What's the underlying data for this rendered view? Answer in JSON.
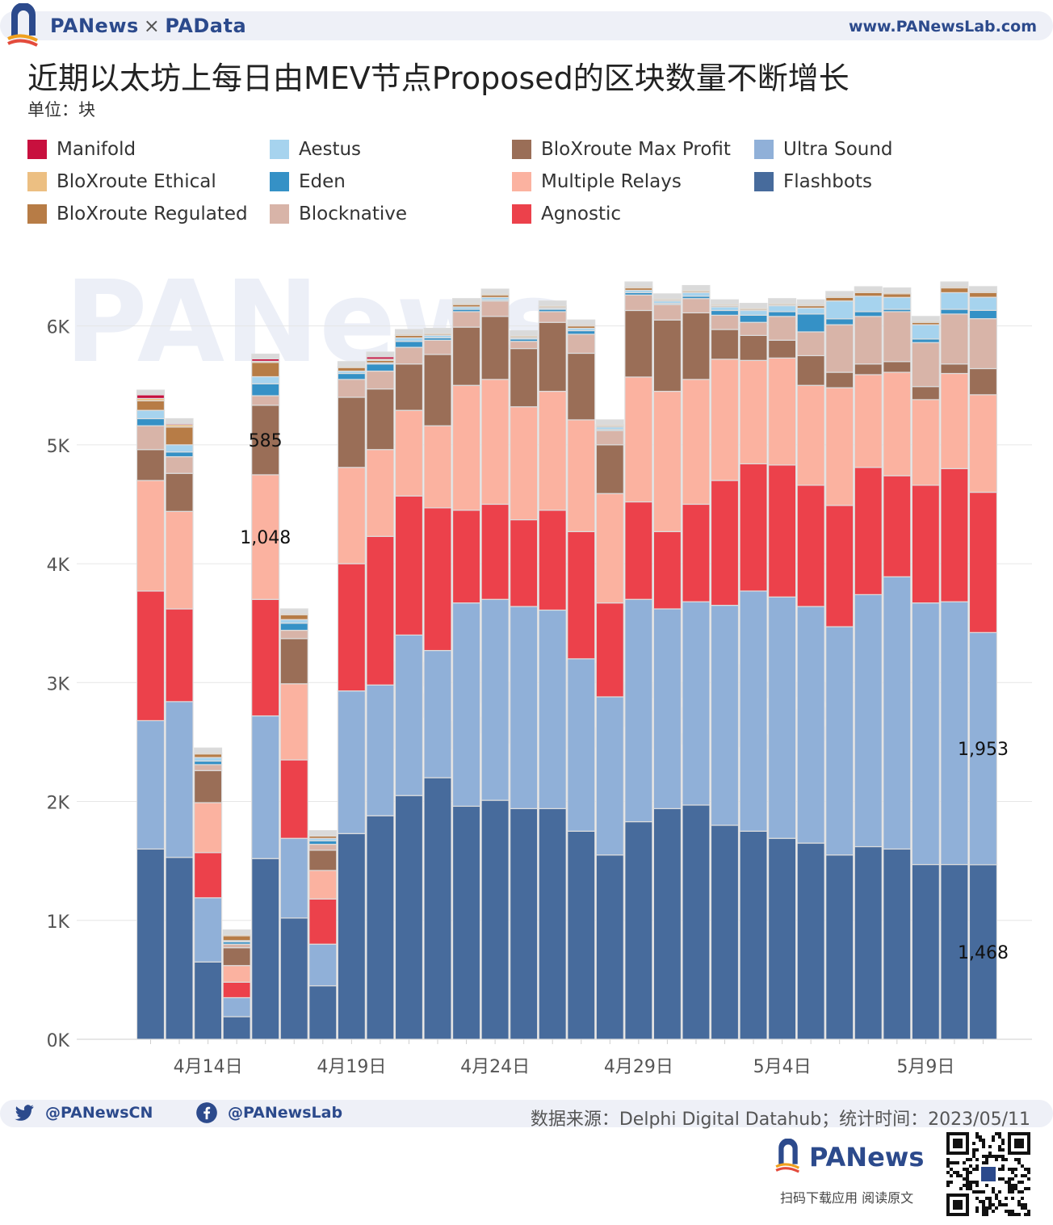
{
  "header": {
    "brand_left": "PANews",
    "brand_sep": "×",
    "brand_right": "PAData",
    "site": "www.PANewsLab.com"
  },
  "title": "近期以太坊上每日由MEV节点Proposed的区块数量不断增长",
  "unit": "单位：块",
  "watermarks": [
    "PANews",
    "PAData"
  ],
  "chart_data": {
    "type": "bar",
    "stacked": true,
    "ylim": [
      0,
      6500
    ],
    "yticks": [
      {
        "value": 0,
        "label": "0K"
      },
      {
        "value": 1000,
        "label": "1K"
      },
      {
        "value": 2000,
        "label": "2K"
      },
      {
        "value": 3000,
        "label": "3K"
      },
      {
        "value": 4000,
        "label": "4K"
      },
      {
        "value": 5000,
        "label": "5K"
      },
      {
        "value": 6000,
        "label": "6K"
      }
    ],
    "xticks": [
      {
        "day": 14,
        "label": "4月14日"
      },
      {
        "day": 19,
        "label": "4月19日"
      },
      {
        "day": 24,
        "label": "4月24日"
      },
      {
        "day": 29,
        "label": "4月29日"
      },
      {
        "day": 34,
        "label": "5月4日"
      },
      {
        "day": 39,
        "label": "5月9日"
      }
    ],
    "days": [
      12,
      13,
      14,
      15,
      16,
      17,
      18,
      19,
      20,
      21,
      22,
      23,
      24,
      25,
      26,
      27,
      28,
      29,
      30,
      31,
      32,
      33,
      34,
      35,
      36,
      37,
      38,
      39,
      40,
      41
    ],
    "legend": [
      {
        "name": "Manifold",
        "color": "#c8103e"
      },
      {
        "name": "Aestus",
        "color": "#a6d3ee"
      },
      {
        "name": "BloXroute Max Profit",
        "color": "#9a6e57"
      },
      {
        "name": "Ultra Sound",
        "color": "#90b0d8"
      },
      {
        "name": "BloXroute Ethical",
        "color": "#ecbf82"
      },
      {
        "name": "Eden",
        "color": "#3591c6"
      },
      {
        "name": "Multiple Relays",
        "color": "#fbb2a0"
      },
      {
        "name": "Flashbots",
        "color": "#476b9c"
      },
      {
        "name": "BloXroute Regulated",
        "color": "#b77c46"
      },
      {
        "name": "Blocknative",
        "color": "#d8b4a8"
      },
      {
        "name": "Agnostic",
        "color": "#ec414b"
      }
    ],
    "series": [
      {
        "name": "Flashbots",
        "color": "#476b9c",
        "values": [
          1600,
          1530,
          650,
          190,
          1520,
          1020,
          450,
          1730,
          1880,
          2050,
          2200,
          1960,
          2010,
          1940,
          1940,
          1750,
          1550,
          1830,
          1940,
          1970,
          1800,
          1750,
          1690,
          1650,
          1550,
          1620,
          1600,
          1470,
          1470,
          1468
        ]
      },
      {
        "name": "Ultra Sound",
        "color": "#90b0d8",
        "values": [
          1080,
          1310,
          540,
          160,
          1200,
          670,
          350,
          1200,
          1100,
          1350,
          1070,
          1710,
          1690,
          1700,
          1670,
          1450,
          1330,
          1870,
          1680,
          1710,
          1850,
          2020,
          2030,
          1990,
          1920,
          2120,
          2290,
          2200,
          2210,
          1953
        ]
      },
      {
        "name": "Agnostic",
        "color": "#ec414b",
        "values": [
          1090,
          780,
          380,
          130,
          980,
          660,
          380,
          1070,
          1250,
          1170,
          1200,
          780,
          800,
          730,
          840,
          1070,
          790,
          820,
          650,
          820,
          1050,
          1070,
          1110,
          1020,
          1020,
          1070,
          850,
          990,
          1120,
          1180
        ]
      },
      {
        "name": "Multiple Relays",
        "color": "#fbb2a0",
        "values": [
          930,
          820,
          420,
          140,
          1048,
          640,
          240,
          810,
          730,
          720,
          690,
          1050,
          1050,
          950,
          1000,
          940,
          920,
          1050,
          1180,
          1050,
          1020,
          870,
          900,
          840,
          990,
          780,
          870,
          720,
          800,
          820
        ]
      },
      {
        "name": "BloXroute Max Profit",
        "color": "#9a6e57",
        "values": [
          260,
          320,
          270,
          150,
          585,
          380,
          170,
          590,
          510,
          390,
          600,
          490,
          530,
          490,
          580,
          560,
          410,
          560,
          600,
          560,
          250,
          210,
          150,
          250,
          130,
          90,
          90,
          110,
          80,
          220
        ]
      },
      {
        "name": "Blocknative",
        "color": "#d8b4a8",
        "values": [
          200,
          140,
          50,
          30,
          80,
          70,
          50,
          150,
          150,
          140,
          120,
          130,
          130,
          60,
          90,
          160,
          120,
          130,
          130,
          120,
          120,
          110,
          200,
          200,
          400,
          400,
          420,
          370,
          420,
          420
        ]
      },
      {
        "name": "Eden",
        "color": "#3591c6",
        "values": [
          60,
          40,
          30,
          20,
          100,
          60,
          30,
          50,
          60,
          50,
          20,
          20,
          10,
          20,
          20,
          30,
          10,
          20,
          10,
          20,
          40,
          60,
          40,
          150,
          50,
          40,
          20,
          30,
          40,
          70
        ]
      },
      {
        "name": "Aestus",
        "color": "#a6d3ee",
        "values": [
          70,
          60,
          30,
          10,
          60,
          30,
          20,
          20,
          10,
          30,
          20,
          20,
          20,
          10,
          10,
          20,
          20,
          20,
          20,
          30,
          30,
          40,
          50,
          50,
          150,
          130,
          100,
          120,
          140,
          110
        ]
      },
      {
        "name": "BloXroute Regulated",
        "color": "#b77c46",
        "values": [
          80,
          150,
          30,
          40,
          120,
          40,
          20,
          30,
          20,
          20,
          10,
          20,
          20,
          10,
          10,
          20,
          10,
          20,
          10,
          10,
          10,
          10,
          10,
          20,
          30,
          30,
          30,
          20,
          40,
          40
        ]
      },
      {
        "name": "BloXroute Ethical",
        "color": "#ecbf82",
        "values": [
          20,
          20,
          10,
          10,
          10,
          10,
          5,
          10,
          10,
          10,
          10,
          10,
          10,
          10,
          10,
          10,
          10,
          10,
          10,
          10,
          10,
          10,
          10,
          10,
          10,
          10,
          10,
          10,
          10,
          10
        ]
      },
      {
        "name": "Manifold",
        "color": "#c8103e",
        "values": [
          30,
          10,
          0,
          0,
          20,
          0,
          0,
          0,
          20,
          0,
          0,
          0,
          0,
          0,
          0,
          0,
          0,
          0,
          0,
          0,
          0,
          0,
          0,
          0,
          0,
          0,
          0,
          0,
          0,
          0
        ]
      }
    ],
    "annotations": [
      {
        "day": 16,
        "series": "BloXroute Max Profit",
        "label": "585"
      },
      {
        "day": 16,
        "series": "Multiple Relays",
        "label": "1,048"
      },
      {
        "day": 41,
        "series": "Ultra Sound",
        "label": "1,953"
      },
      {
        "day": 41,
        "series": "Flashbots",
        "label": "1,468"
      }
    ]
  },
  "footer": {
    "twitter": "@PANewsCN",
    "facebook": "@PANewsLab",
    "source": "数据来源：Delphi Digital Datahub；统计时间：2023/05/11",
    "brand": "PANews",
    "scan": "扫码下载应用  阅读原文"
  }
}
